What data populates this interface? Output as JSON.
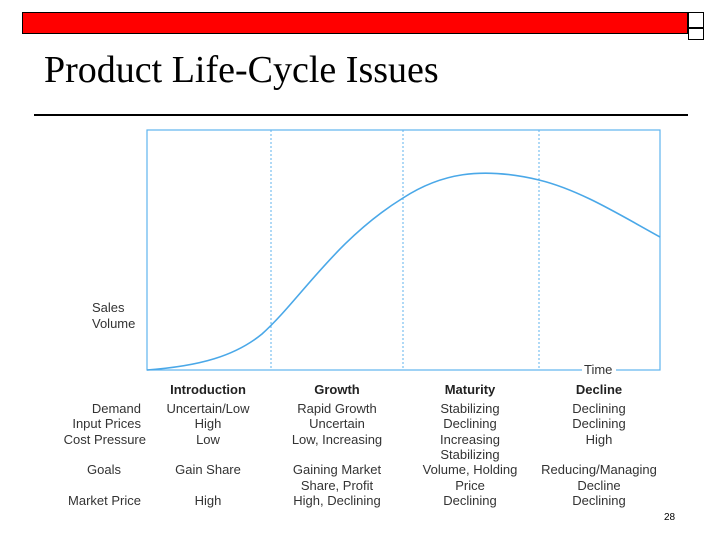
{
  "slide": {
    "title": "Product Life-Cycle Issues",
    "page_number": "28"
  },
  "diagram": {
    "y_axis_label_line1": "Sales",
    "y_axis_label_line2": "Volume",
    "x_axis_label": "Time",
    "phases": [
      "Introduction",
      "Growth",
      "Maturity",
      "Decline"
    ],
    "row_labels": {
      "demand": "Demand",
      "input_prices": "Input Prices",
      "cost_pressure": "Cost Pressure",
      "goals": "Goals",
      "market_price": "Market Price"
    },
    "introduction": {
      "demand": "Uncertain/Low",
      "input_prices": "High",
      "cost_pressure": "Low",
      "goals": "Gain Share",
      "market_price": "High"
    },
    "growth": {
      "demand": "Rapid Growth",
      "input_prices": "Uncertain",
      "cost_pressure": "Low, Increasing",
      "goals_line1": "Gaining Market",
      "goals_line2": "Share, Profit",
      "market_price": "High, Declining"
    },
    "maturity": {
      "demand": "Stabilizing",
      "input_prices": "Declining",
      "cost_pressure": "Increasing",
      "goals_line1": "Stabilizing",
      "goals_line2": "Volume, Holding",
      "goals_line3": "Price",
      "market_price": "Declining"
    },
    "decline": {
      "demand": "Declining",
      "input_prices": "Declining",
      "cost_pressure": "High",
      "goals_line1": "Reducing/Managing",
      "goals_line2": "Decline",
      "market_price": "Declining"
    },
    "colors": {
      "curve": "#4aa8e8",
      "frame": "#5fb3ee",
      "dividers": "#5fb3ee",
      "title_bar": "#ff0000"
    }
  }
}
